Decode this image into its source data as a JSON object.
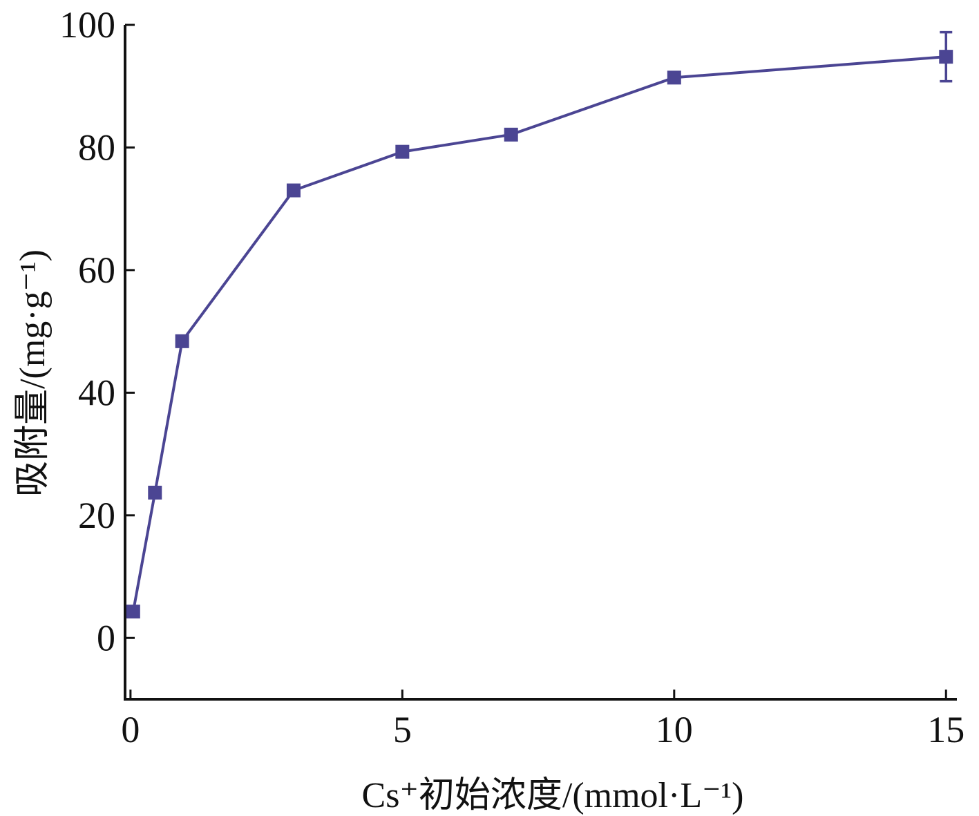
{
  "chart_data": {
    "type": "line",
    "title": "",
    "xlabel": "Cs⁺初始浓度/(mmol·L⁻¹)",
    "ylabel": "吸附量/(mg·g⁻¹)",
    "xlim": [
      -0.1,
      15.2
    ],
    "ylim": [
      -10,
      100
    ],
    "xticks": [
      0,
      5,
      10,
      15
    ],
    "yticks": [
      0,
      20,
      40,
      60,
      80,
      100
    ],
    "grid": false,
    "legend": "none",
    "series": [
      {
        "color": "#4b4593",
        "marker": "square",
        "x": [
          0.05,
          0.45,
          0.95,
          3,
          5,
          7,
          10,
          15
        ],
        "y": [
          4.3,
          23.7,
          48.4,
          73,
          79.3,
          82.1,
          91.4,
          94.8
        ],
        "error": [
          0,
          0,
          0,
          0,
          0,
          0,
          0,
          4
        ]
      }
    ]
  }
}
